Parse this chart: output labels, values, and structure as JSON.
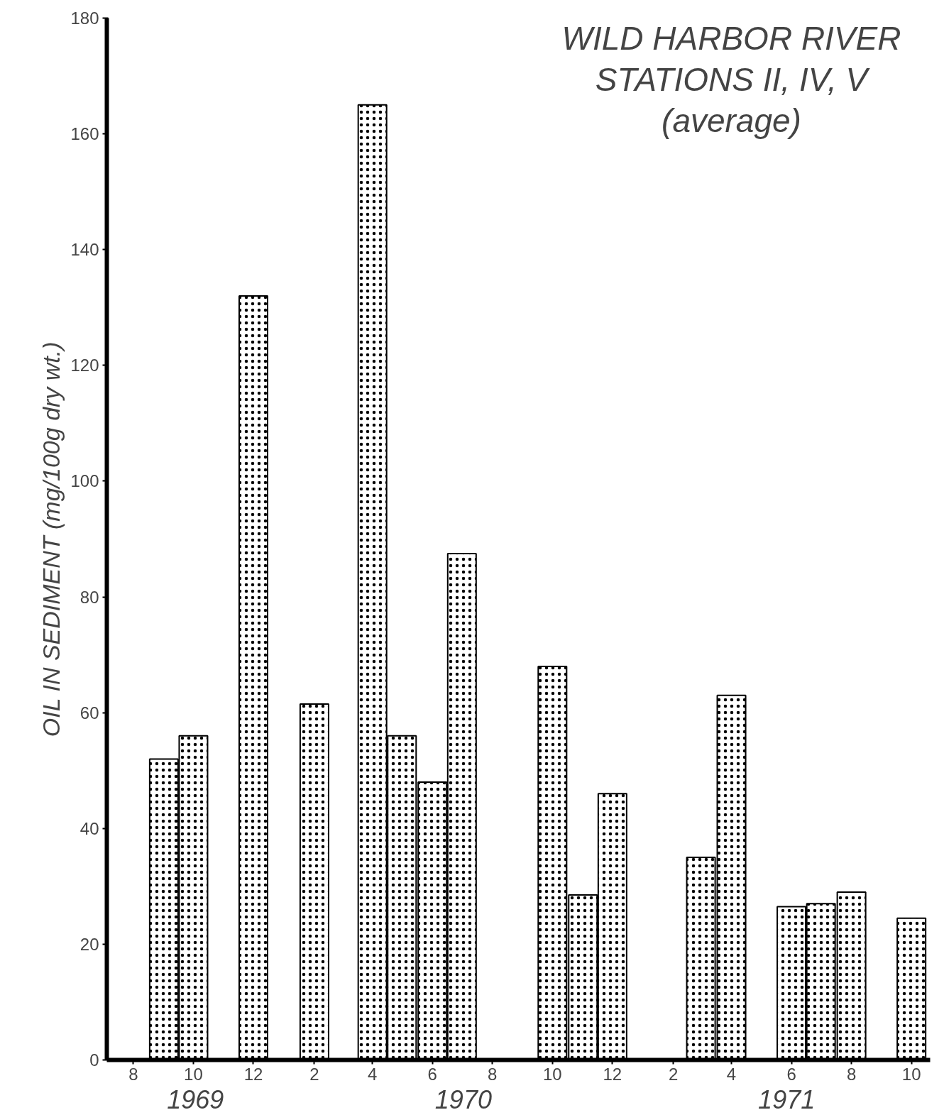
{
  "chart_data": {
    "type": "bar",
    "title": "WILD HARBOR RIVER\nSTATIONS II, IV, V",
    "subtitle": "(average)",
    "ylabel": "OIL IN SEDIMENT (mg/100g dry wt.)",
    "x": [
      "1969-09",
      "1969-10",
      "1969-12",
      "1970-02",
      "1970-04",
      "1970-05",
      "1970-06",
      "1970-07",
      "1970-10",
      "1970-11",
      "1970-12",
      "1971-03",
      "1971-04",
      "1971-06",
      "1971-07",
      "1971-08",
      "1971-10"
    ],
    "values": [
      52,
      56,
      132,
      61.5,
      165,
      56,
      48,
      87.5,
      68,
      28.5,
      46,
      35,
      63,
      26.5,
      27,
      29,
      24.5
    ],
    "color": "#000000",
    "xlim": [
      "1969-07-05",
      "1971-10-20"
    ],
    "ylim": [
      0,
      180
    ],
    "xticks": [
      {
        "value": "1969-08",
        "label": "8"
      },
      {
        "value": "1969-10",
        "label": "10"
      },
      {
        "value": "1969-12",
        "label": "12"
      },
      {
        "value": "1970-02",
        "label": "2"
      },
      {
        "value": "1970-04",
        "label": "4"
      },
      {
        "value": "1970-06",
        "label": "6"
      },
      {
        "value": "1970-08",
        "label": "8"
      },
      {
        "value": "1970-10",
        "label": "10"
      },
      {
        "value": "1970-12",
        "label": "12"
      },
      {
        "value": "1971-02",
        "label": "2"
      },
      {
        "value": "1971-04",
        "label": "4"
      },
      {
        "value": "1971-06",
        "label": "6"
      },
      {
        "value": "1971-08",
        "label": "8"
      },
      {
        "value": "1971-10",
        "label": "10"
      }
    ],
    "yticks": [
      0,
      20,
      40,
      60,
      80,
      100,
      120,
      140,
      160,
      180
    ],
    "annotations": [
      "1969",
      "1970",
      "1971"
    ],
    "grid": false
  }
}
